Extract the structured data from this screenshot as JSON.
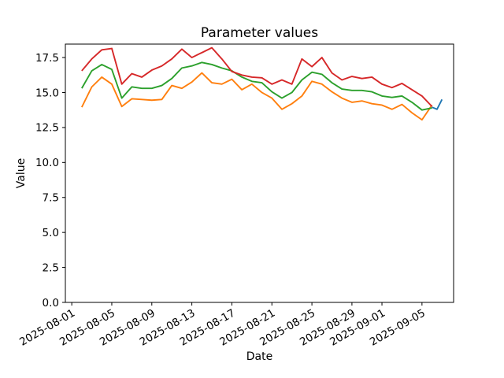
{
  "figure": {
    "title": "Parameter values",
    "xlabel": "Date",
    "ylabel": "Value"
  },
  "chart_data": {
    "type": "line",
    "title": "Parameter values",
    "xlabel": "Date",
    "ylabel": "Value",
    "grid": false,
    "legend": "none",
    "ylim": [
      0,
      18.46
    ],
    "xlim_days": [
      -0.64,
      38.16
    ],
    "yticks": [
      0.0,
      2.5,
      5.0,
      7.5,
      10.0,
      12.5,
      15.0,
      17.5
    ],
    "xticks": [
      {
        "label": "2025-08-01",
        "day": 0
      },
      {
        "label": "2025-08-05",
        "day": 4
      },
      {
        "label": "2025-08-09",
        "day": 8
      },
      {
        "label": "2025-08-13",
        "day": 12
      },
      {
        "label": "2025-08-17",
        "day": 16
      },
      {
        "label": "2025-08-21",
        "day": 20
      },
      {
        "label": "2025-08-25",
        "day": 24
      },
      {
        "label": "2025-08-29",
        "day": 28
      },
      {
        "label": "2025-09-01",
        "day": 31
      },
      {
        "label": "2025-09-05",
        "day": 35
      }
    ],
    "x_epoch": "days since 2025-08-01",
    "series": [
      {
        "name": "orange",
        "color": "#ff7f0e",
        "start_day": 1,
        "start_date": "2025-08-02",
        "values": [
          13.95,
          15.4,
          16.1,
          15.6,
          14.0,
          14.55,
          14.5,
          14.45,
          14.5,
          15.5,
          15.3,
          15.75,
          16.4,
          15.7,
          15.6,
          15.95,
          15.2,
          15.6,
          15.0,
          14.6,
          13.8,
          14.2,
          14.75,
          15.8,
          15.6,
          15.05,
          14.6,
          14.3,
          14.4,
          14.2,
          14.1,
          13.8,
          14.15,
          13.55,
          13.05,
          14.1
        ]
      },
      {
        "name": "green",
        "color": "#2ca02c",
        "start_day": 1,
        "start_date": "2025-08-02",
        "values": [
          15.3,
          16.55,
          17.0,
          16.65,
          14.6,
          15.4,
          15.3,
          15.3,
          15.5,
          16.0,
          16.75,
          16.9,
          17.15,
          17.0,
          16.75,
          16.55,
          16.1,
          15.8,
          15.7,
          15.05,
          14.6,
          15.0,
          15.9,
          16.45,
          16.3,
          15.7,
          15.25,
          15.15,
          15.15,
          15.05,
          14.75,
          14.65,
          14.75,
          14.3,
          13.75,
          13.9
        ]
      },
      {
        "name": "red",
        "color": "#d62728",
        "start_day": 1,
        "start_date": "2025-08-02",
        "values": [
          16.55,
          17.4,
          18.05,
          18.15,
          15.6,
          16.35,
          16.1,
          16.6,
          16.9,
          17.4,
          18.1,
          17.5,
          17.85,
          18.2,
          17.4,
          16.5,
          16.25,
          16.1,
          16.05,
          15.6,
          15.9,
          15.6,
          17.4,
          16.85,
          17.5,
          16.4,
          15.9,
          16.15,
          16.0,
          16.1,
          15.6,
          15.35,
          15.65,
          15.2,
          14.75,
          14.0
        ]
      },
      {
        "name": "blue",
        "color": "#1f77b4",
        "start_date": "2025-09-06",
        "x_days": [
          36,
          36.5,
          37
        ],
        "values": [
          13.95,
          13.8,
          14.5
        ]
      }
    ]
  }
}
